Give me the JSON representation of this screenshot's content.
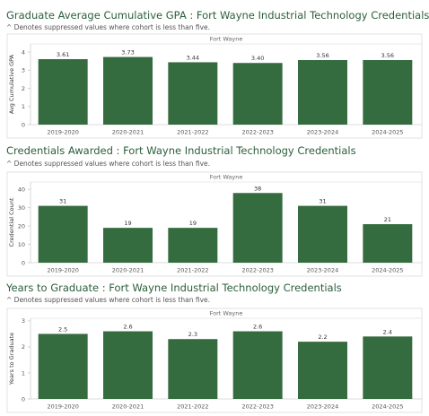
{
  "accent_color": "#346b3f",
  "title_color": "#2b5e3a",
  "chart_data": [
    {
      "type": "bar",
      "title": "Graduate Average Cumulative GPA : Fort Wayne Industrial Technology Credentials",
      "subtitle": "^ Denotes suppressed values where cohort is less than five.",
      "panel_label": "Fort Wayne",
      "ylabel": "Avg Cumulative GPA",
      "xlabel": "",
      "categories": [
        "2019-2020",
        "2020-2021",
        "2021-2022",
        "2022-2023",
        "2023-2024",
        "2024-2025"
      ],
      "values": [
        3.61,
        3.73,
        3.44,
        3.4,
        3.56,
        3.56
      ],
      "value_labels": [
        "3.61",
        "3.73",
        "3.44",
        "3.40",
        "3.56",
        "3.56"
      ],
      "yticks": [
        "0",
        "1",
        "2",
        "3",
        "4"
      ],
      "ytick_values": [
        0,
        1,
        2,
        3,
        4
      ],
      "ylim": [
        0,
        4.45
      ],
      "grid": false,
      "legend": "none"
    },
    {
      "type": "bar",
      "title": "Credentials Awarded : Fort Wayne Industrial Technology Credentials",
      "subtitle": "^ Denotes suppressed values where cohort is less than five.",
      "panel_label": "Fort Wayne",
      "ylabel": "Credential Count",
      "xlabel": "",
      "categories": [
        "2019-2020",
        "2020-2021",
        "2021-2022",
        "2022-2023",
        "2023-2024",
        "2024-2025"
      ],
      "values": [
        31,
        19,
        19,
        38,
        31,
        21
      ],
      "value_labels": [
        "31",
        "19",
        "19",
        "38",
        "31",
        "21"
      ],
      "yticks": [
        "0",
        "10",
        "20",
        "30",
        "40"
      ],
      "ytick_values": [
        0,
        10,
        20,
        30,
        40
      ],
      "ylim": [
        0,
        44
      ],
      "grid": false,
      "legend": "none"
    },
    {
      "type": "bar",
      "title": "Years to Graduate : Fort Wayne Industrial Technology Credentials",
      "subtitle": "^ Denotes suppressed values where cohort is less than five.",
      "panel_label": "Fort Wayne",
      "ylabel": "Years to Graduate",
      "xlabel": "",
      "categories": [
        "2019-2020",
        "2020-2021",
        "2021-2022",
        "2022-2023",
        "2023-2024",
        "2024-2025"
      ],
      "values": [
        2.5,
        2.6,
        2.3,
        2.6,
        2.2,
        2.4
      ],
      "value_labels": [
        "2.5",
        "2.6",
        "2.3",
        "2.6",
        "2.2",
        "2.4"
      ],
      "yticks": [
        "0",
        "1",
        "2",
        "3"
      ],
      "ytick_values": [
        0,
        1,
        2,
        3
      ],
      "ylim": [
        0,
        3.1
      ],
      "grid": false,
      "legend": "none"
    }
  ]
}
